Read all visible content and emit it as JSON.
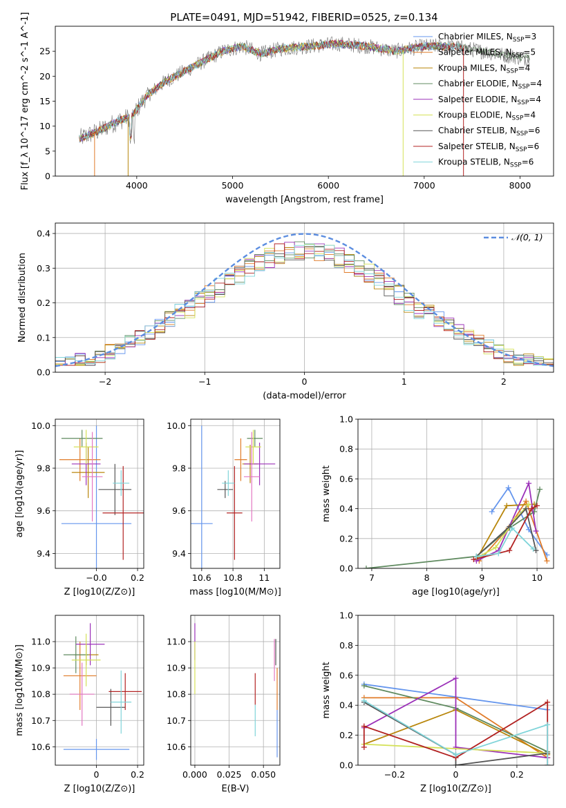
{
  "title": "PLATE=0491, MJD=51942, FIBERID=0525, z=0.134",
  "colors": [
    "#6495ed",
    "#e07b28",
    "#b8860b",
    "#5f8a5f",
    "#9b30b8",
    "#d4e157",
    "#555555",
    "#b22222",
    "#7fd4d9"
  ],
  "chart_data": [
    {
      "id": "spectrum",
      "type": "line",
      "xlabel": "wavelength [Angstrom, rest frame]",
      "ylabel": "Flux [f_λ 10^-17 erg cm^-2 s^-1 A^-1]",
      "xlim": [
        3150,
        8350
      ],
      "ylim": [
        0,
        30
      ],
      "xticks": [
        4000,
        5000,
        6000,
        7000,
        8000
      ],
      "yticks": [
        0,
        5,
        10,
        15,
        20,
        25
      ],
      "grid": false,
      "legend_position": "right",
      "series": [
        {
          "name": "Chabrier MILES",
          "nssp": "3"
        },
        {
          "name": "Salpeter MILES",
          "nssp": "5"
        },
        {
          "name": "Kroupa MILES",
          "nssp": "4"
        },
        {
          "name": "Chabrier ELODIE",
          "nssp": "4"
        },
        {
          "name": "Salpeter ELODIE",
          "nssp": "4"
        },
        {
          "name": "Kroupa ELODIE",
          "nssp": "4"
        },
        {
          "name": "Chabrier STELIB",
          "nssp": "6"
        },
        {
          "name": "Salpeter STELIB",
          "nssp": "6"
        },
        {
          "name": "Kroupa STELIB",
          "nssp": "6"
        }
      ],
      "continuum": [
        [
          3400,
          7.5
        ],
        [
          3600,
          9
        ],
        [
          3800,
          11
        ],
        [
          3950,
          12
        ],
        [
          4100,
          16
        ],
        [
          4300,
          19
        ],
        [
          4500,
          21
        ],
        [
          4700,
          23
        ],
        [
          4900,
          25
        ],
        [
          5100,
          26
        ],
        [
          5300,
          24.5
        ],
        [
          5500,
          25.5
        ],
        [
          5800,
          26
        ],
        [
          6100,
          26.5
        ],
        [
          6400,
          26
        ],
        [
          6700,
          25
        ],
        [
          7000,
          26
        ],
        [
          7300,
          26
        ],
        [
          7600,
          25
        ],
        [
          7900,
          24
        ],
        [
          8100,
          23.5
        ]
      ]
    },
    {
      "id": "residuals",
      "type": "line",
      "xlabel": "(data-model)/error",
      "ylabel": "Normed distribution",
      "xlim": [
        -2.5,
        2.5
      ],
      "ylim": [
        0,
        0.43
      ],
      "xticks": [
        -2,
        -1,
        0,
        1,
        2
      ],
      "yticks": [
        0.0,
        0.1,
        0.2,
        0.3,
        0.4
      ],
      "grid": true,
      "legend_position": "top-right",
      "legend": "𝒩(0, 1)"
    },
    {
      "id": "age_vs_Z",
      "type": "scatter",
      "xlabel": "Z [log10(Z/Z⊙)]",
      "ylabel": "age  [log10(age/yr)]",
      "xlim": [
        -0.2,
        0.23
      ],
      "ylim": [
        9.33,
        10.03
      ],
      "xticks": [
        -0.0,
        0.2
      ],
      "xticklabels": [
        "−0.0",
        "0.2"
      ],
      "yticks": [
        9.4,
        9.6,
        9.8,
        10.0
      ],
      "grid": true,
      "points": [
        {
          "x": 0.0,
          "y": 9.54,
          "xerr": 0.17,
          "yerr": 0.46
        },
        {
          "x": -0.08,
          "y": 9.84,
          "xerr": 0.1,
          "yerr": 0.1
        },
        {
          "x": -0.04,
          "y": 9.78,
          "xerr": 0.08,
          "yerr": 0.12
        },
        {
          "x": -0.07,
          "y": 9.94,
          "xerr": 0.1,
          "yerr": 0.04
        },
        {
          "x": -0.05,
          "y": 9.82,
          "xerr": 0.07,
          "yerr": 0.1
        },
        {
          "x": -0.05,
          "y": 9.9,
          "xerr": 0.06,
          "yerr": 0.08
        },
        {
          "x": 0.09,
          "y": 9.7,
          "xerr": 0.08,
          "yerr": 0.12
        },
        {
          "x": 0.13,
          "y": 9.59,
          "xerr": 0.1,
          "yerr": 0.22
        },
        {
          "x": 0.12,
          "y": 9.73,
          "xerr": 0.04,
          "yerr": 0.06
        },
        {
          "x": -0.02,
          "y": 9.76,
          "xerr": 0.05,
          "yerr": 0.21
        }
      ]
    },
    {
      "id": "age_vs_mass",
      "type": "scatter",
      "xlabel": "mass [log10(M/M⊙)]",
      "ylabel": "",
      "xlim": [
        10.53,
        11.1
      ],
      "ylim": [
        9.33,
        10.03
      ],
      "xticks": [
        10.6,
        10.8,
        11.0
      ],
      "yticks": [
        9.4,
        9.6,
        9.8,
        10.0
      ],
      "grid": true,
      "points": [
        {
          "x": 10.6,
          "y": 9.54,
          "xerr": 0.07,
          "yerr": 0.46
        },
        {
          "x": 10.85,
          "y": 9.84,
          "xerr": 0.04,
          "yerr": 0.1
        },
        {
          "x": 10.91,
          "y": 9.82,
          "xerr": 0.05,
          "yerr": 0.09
        },
        {
          "x": 10.94,
          "y": 9.94,
          "xerr": 0.05,
          "yerr": 0.04
        },
        {
          "x": 10.97,
          "y": 9.82,
          "xerr": 0.1,
          "yerr": 0.1
        },
        {
          "x": 10.93,
          "y": 9.9,
          "xerr": 0.05,
          "yerr": 0.08
        },
        {
          "x": 10.75,
          "y": 9.7,
          "xerr": 0.05,
          "yerr": 0.04
        },
        {
          "x": 10.81,
          "y": 9.59,
          "xerr": 0.05,
          "yerr": 0.22
        },
        {
          "x": 10.77,
          "y": 9.73,
          "xerr": 0.04,
          "yerr": 0.06
        },
        {
          "x": 10.92,
          "y": 9.76,
          "xerr": 0.05,
          "yerr": 0.21
        }
      ]
    },
    {
      "id": "weight_vs_age",
      "type": "line",
      "xlabel": "age  [log10(age/yr)]",
      "ylabel": "mass weight",
      "xlim": [
        6.75,
        10.3
      ],
      "ylim": [
        0,
        1.0
      ],
      "xticks": [
        7,
        8,
        9,
        10
      ],
      "yticks": [
        0.0,
        0.2,
        0.4,
        0.6,
        0.8,
        1.0
      ],
      "grid": true,
      "series": [
        {
          "x": [
            9.18,
            9.48,
            9.85,
            10.18
          ],
          "y": [
            0.38,
            0.54,
            0.26,
            0.09
          ]
        },
        {
          "x": [
            8.95,
            9.48,
            9.8,
            10.18
          ],
          "y": [
            0.05,
            0.27,
            0.45,
            0.05
          ]
        },
        {
          "x": [
            8.9,
            9.45,
            9.95
          ],
          "y": [
            0.06,
            0.42,
            0.43
          ]
        },
        {
          "x": [
            6.9,
            8.9,
            9.5,
            9.95,
            10.05
          ],
          "y": [
            0.0,
            0.08,
            0.27,
            0.38,
            0.53
          ]
        },
        {
          "x": [
            8.9,
            9.3,
            9.85,
            9.98
          ],
          "y": [
            0.05,
            0.12,
            0.57,
            0.25
          ]
        },
        {
          "x": [
            8.95,
            9.25,
            9.6,
            9.85
          ],
          "y": [
            0.08,
            0.14,
            0.33,
            0.43
          ]
        },
        {
          "x": [
            8.9,
            9.5,
            9.8,
            9.98
          ],
          "y": [
            0.08,
            0.28,
            0.4,
            0.12
          ]
        },
        {
          "x": [
            8.85,
            9.5,
            9.9,
            10.0
          ],
          "y": [
            0.06,
            0.12,
            0.4,
            0.42
          ]
        },
        {
          "x": [
            8.9,
            9.3,
            9.55,
            9.93
          ],
          "y": [
            0.08,
            0.1,
            0.27,
            0.13
          ]
        }
      ]
    },
    {
      "id": "mass_vs_Z",
      "type": "scatter",
      "xlabel": "Z [log10(Z/Z⊙)]",
      "ylabel": "mass [log10(M/M⊙)]",
      "xlim": [
        -0.2,
        0.23
      ],
      "ylim": [
        10.53,
        11.1
      ],
      "xticks": [
        0.0,
        0.2
      ],
      "yticks": [
        10.6,
        10.7,
        10.8,
        10.9,
        11.0
      ],
      "grid": true,
      "points": [
        {
          "x": 0.0,
          "y": 10.59,
          "xerr": 0.16,
          "yerr": 0.04
        },
        {
          "x": -0.08,
          "y": 10.87,
          "xerr": 0.08,
          "yerr": 0.13
        },
        {
          "x": -0.05,
          "y": 10.95,
          "xerr": 0.06,
          "yerr": 0.04
        },
        {
          "x": -0.1,
          "y": 10.95,
          "xerr": 0.06,
          "yerr": 0.07
        },
        {
          "x": -0.03,
          "y": 10.99,
          "xerr": 0.07,
          "yerr": 0.08
        },
        {
          "x": -0.05,
          "y": 10.93,
          "xerr": 0.07,
          "yerr": 0.1
        },
        {
          "x": 0.07,
          "y": 10.75,
          "xerr": 0.07,
          "yerr": 0.07
        },
        {
          "x": 0.14,
          "y": 10.81,
          "xerr": 0.08,
          "yerr": 0.07
        },
        {
          "x": 0.12,
          "y": 10.77,
          "xerr": 0.05,
          "yerr": 0.12
        },
        {
          "x": -0.07,
          "y": 10.8,
          "xerr": 0.06,
          "yerr": 0.12
        }
      ]
    },
    {
      "id": "mass_vs_ebv",
      "type": "scatter",
      "xlabel": "E(B-V)",
      "ylabel": "",
      "xlim": [
        -0.003,
        0.062
      ],
      "ylim": [
        10.53,
        11.1
      ],
      "xticks": [
        0.0,
        0.025,
        0.05
      ],
      "xticklabels": [
        "0.000",
        "0.025",
        "0.050"
      ],
      "yticks": [
        10.6,
        10.7,
        10.8,
        10.9,
        11.0
      ],
      "grid": true,
      "points": [
        {
          "x": 0.0,
          "y": 11.0,
          "yerr": 0.07,
          "color_index": 4
        },
        {
          "x": 0.0,
          "y": 10.9,
          "yerr": 0.1,
          "color_index": 5
        },
        {
          "x": 0.044,
          "y": 10.82,
          "yerr": 0.06,
          "color_index": 7
        },
        {
          "x": 0.044,
          "y": 10.7,
          "yerr": 0.06,
          "color_index": 8
        },
        {
          "x": 0.06,
          "y": 10.65,
          "yerr": 0.09,
          "color_index": 0
        },
        {
          "x": 0.059,
          "y": 10.96,
          "yerr": 0.05,
          "color_index": 6
        },
        {
          "x": 0.058,
          "y": 10.93,
          "yerr": 0.08,
          "color_index": 9
        },
        {
          "x": 0.06,
          "y": 10.82,
          "yerr": 0.08,
          "color_index": 1
        }
      ]
    },
    {
      "id": "weight_vs_Z",
      "type": "line",
      "xlabel": "Z [log10(Z/Z⊙)]",
      "ylabel": "mass weight",
      "xlim": [
        -0.32,
        0.32
      ],
      "ylim": [
        0,
        1.0
      ],
      "xticks": [
        -0.2,
        0.0,
        0.2
      ],
      "yticks": [
        0.0,
        0.2,
        0.4,
        0.6,
        0.8,
        1.0
      ],
      "grid": true,
      "series": [
        {
          "x": [
            -0.3,
            0.3
          ],
          "y": [
            0.54,
            0.37
          ]
        },
        {
          "x": [
            -0.3,
            0.0,
            0.3
          ],
          "y": [
            0.45,
            0.45,
            0.05
          ]
        },
        {
          "x": [
            -0.3,
            0.0,
            0.3
          ],
          "y": [
            0.14,
            0.37,
            0.07
          ]
        },
        {
          "x": [
            -0.3,
            0.0,
            0.3
          ],
          "y": [
            0.53,
            0.38,
            0.09
          ]
        },
        {
          "x": [
            -0.3,
            0.0,
            0.0,
            0.3
          ],
          "y": [
            0.25,
            0.58,
            0.12,
            0.05
          ]
        },
        {
          "x": [
            -0.3,
            0.3
          ],
          "y": [
            0.14,
            0.08
          ]
        },
        {
          "x": [
            -0.3,
            0.0,
            0.0,
            0.3
          ],
          "y": [
            0.42,
            0.07,
            0.0,
            0.08
          ]
        },
        {
          "x": [
            -0.3,
            -0.3,
            0.0,
            0.3,
            0.3
          ],
          "y": [
            0.12,
            0.26,
            0.05,
            0.42,
            0.0
          ]
        },
        {
          "x": [
            -0.3,
            0.0,
            0.3,
            0.3
          ],
          "y": [
            0.43,
            0.07,
            0.27,
            0.0
          ]
        }
      ]
    }
  ]
}
